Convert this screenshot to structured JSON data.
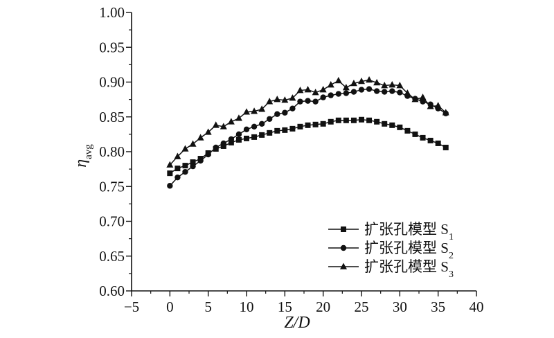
{
  "chart_data": {
    "type": "line",
    "title": "",
    "xlabel": "Z/D",
    "ylabel": {
      "main": "η",
      "sub": "avg"
    },
    "xlim": [
      -5,
      40
    ],
    "ylim": [
      0.6,
      1.0
    ],
    "xticks": [
      "−5",
      "0",
      "5",
      "10",
      "15",
      "20",
      "25",
      "30",
      "35",
      "40"
    ],
    "yticks": [
      "0.60",
      "0.65",
      "0.70",
      "0.75",
      "0.80",
      "0.85",
      "0.90",
      "0.95",
      "1.00"
    ],
    "grid": false,
    "legend_position": "bottom-right",
    "x": [
      0,
      1,
      2,
      3,
      4,
      5,
      6,
      7,
      8,
      9,
      10,
      11,
      12,
      13,
      14,
      15,
      16,
      17,
      18,
      19,
      20,
      21,
      22,
      23,
      24,
      25,
      26,
      27,
      28,
      29,
      30,
      31,
      32,
      33,
      34,
      35,
      36
    ],
    "series": [
      {
        "name": "扩张孔模型 S",
        "name_sub": "1",
        "marker": "square",
        "values": [
          0.769,
          0.776,
          0.78,
          0.785,
          0.79,
          0.798,
          0.804,
          0.808,
          0.813,
          0.817,
          0.819,
          0.821,
          0.824,
          0.827,
          0.83,
          0.831,
          0.833,
          0.836,
          0.838,
          0.839,
          0.84,
          0.843,
          0.845,
          0.845,
          0.845,
          0.846,
          0.845,
          0.843,
          0.84,
          0.838,
          0.835,
          0.83,
          0.825,
          0.82,
          0.816,
          0.812,
          0.806
        ]
      },
      {
        "name": "扩张孔模型 S",
        "name_sub": "2",
        "marker": "circle",
        "values": [
          0.751,
          0.763,
          0.771,
          0.779,
          0.787,
          0.796,
          0.806,
          0.812,
          0.818,
          0.825,
          0.832,
          0.836,
          0.84,
          0.847,
          0.854,
          0.856,
          0.862,
          0.872,
          0.873,
          0.872,
          0.878,
          0.881,
          0.883,
          0.884,
          0.886,
          0.889,
          0.89,
          0.887,
          0.886,
          0.887,
          0.885,
          0.88,
          0.876,
          0.872,
          0.868,
          0.862,
          0.855
        ]
      },
      {
        "name": "扩张孔模型 S",
        "name_sub": "3",
        "marker": "triangle",
        "values": [
          0.781,
          0.793,
          0.804,
          0.811,
          0.82,
          0.828,
          0.838,
          0.836,
          0.843,
          0.848,
          0.857,
          0.858,
          0.861,
          0.872,
          0.875,
          0.874,
          0.877,
          0.888,
          0.889,
          0.885,
          0.889,
          0.896,
          0.902,
          0.892,
          0.898,
          0.901,
          0.903,
          0.899,
          0.895,
          0.896,
          0.895,
          0.884,
          0.875,
          0.878,
          0.865,
          0.866,
          0.856
        ]
      }
    ]
  }
}
